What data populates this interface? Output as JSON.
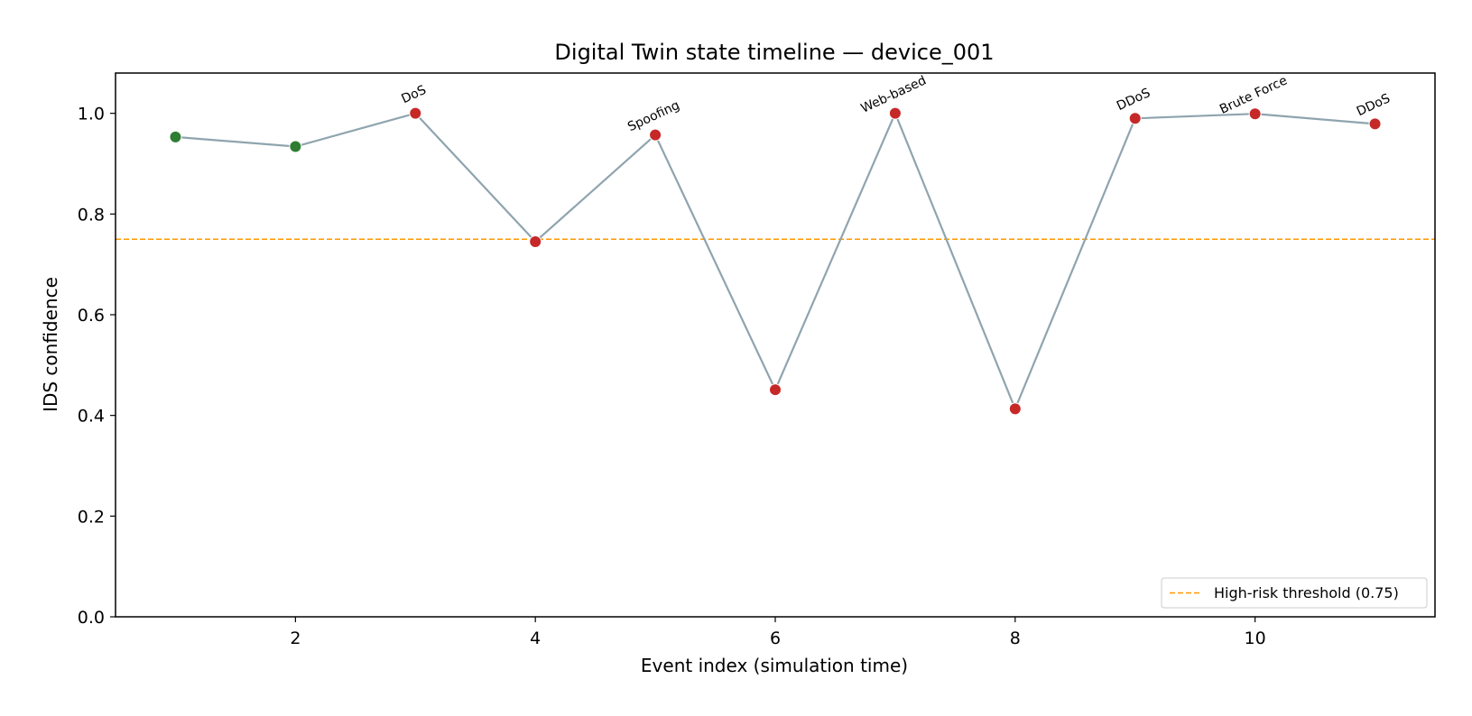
{
  "chart_data": {
    "type": "line",
    "title": "Digital Twin state timeline — device_001",
    "xlabel": "Event index (simulation time)",
    "ylabel": "IDS confidence",
    "xlim": [
      0.5,
      11.5
    ],
    "ylim": [
      0.0,
      1.08
    ],
    "xticks": [
      2,
      4,
      6,
      8,
      10
    ],
    "yticks": [
      0.0,
      0.2,
      0.4,
      0.6,
      0.8,
      1.0
    ],
    "grid": false,
    "line_color": "#8fa4ae",
    "x": [
      1,
      2,
      3,
      4,
      5,
      6,
      7,
      8,
      9,
      10,
      11
    ],
    "values": [
      0.953,
      0.934,
      1.0,
      0.745,
      0.957,
      0.451,
      1.0,
      0.413,
      0.99,
      0.999,
      0.979
    ],
    "point_colors": [
      "#2e7d32",
      "#2e7d32",
      "#c62828",
      "#c62828",
      "#c62828",
      "#c62828",
      "#c62828",
      "#c62828",
      "#c62828",
      "#c62828",
      "#c62828"
    ],
    "point_labels": [
      "",
      "",
      "DoS",
      "",
      "Spoofing",
      "",
      "Web-based",
      "",
      "DDoS",
      "Brute Force",
      "DDoS"
    ],
    "threshold": {
      "value": 0.75,
      "color": "#ff9800",
      "label": "High-risk threshold (0.75)"
    },
    "legend_position": "lower-right"
  }
}
